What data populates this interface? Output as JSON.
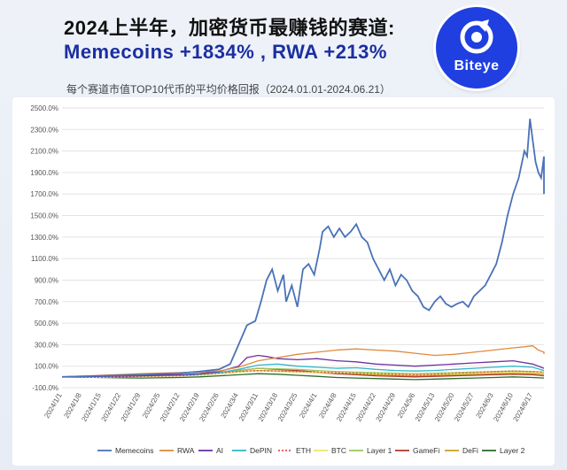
{
  "header": {
    "title_line1": "2024上半年，加密货币最赚钱的赛道:",
    "title_line2": "Memecoins  +1834%  , RWA  +213%",
    "subtitle": "每个赛道市值TOP10代币的平均价格回报（2024.01.01-2024.06.21）",
    "logo_text": "Biteye"
  },
  "colors": {
    "Memecoins": "#4a72b8",
    "RWA": "#e08a3c",
    "AI": "#7030a0",
    "DePIN": "#31b7c9",
    "ETH": "#d9534f",
    "BTC": "#f2e36b",
    "Layer 1": "#9bc85a",
    "GameFi": "#b03a2e",
    "DeFi": "#c9a227",
    "Layer 2": "#2e6b2e"
  },
  "chart_data": {
    "type": "line",
    "title": "每个赛道市值TOP10代币的平均价格回报（2024.01.01-2024.06.21）",
    "ylim": [
      -100,
      2500
    ],
    "yticks": [
      -100,
      100,
      300,
      500,
      700,
      900,
      1100,
      1300,
      1500,
      1700,
      1900,
      2100,
      2300,
      2500
    ],
    "ytick_labels": [
      "-100.0%",
      "100.0%",
      "300.0%",
      "500.0%",
      "700.0%",
      "900.0%",
      "1100.0%",
      "1300.0%",
      "1500.0%",
      "1700.0%",
      "1900.0%",
      "2100.0%",
      "2300.0%",
      "2500.0%"
    ],
    "xtick_labels": [
      "2024/1/1",
      "2024/1/8",
      "2024/1/15",
      "2024/1/22",
      "2024/1/29",
      "2024/2/5",
      "2024/2/12",
      "2024/2/19",
      "2024/2/26",
      "2024/3/4",
      "2024/3/11",
      "2024/3/18",
      "2024/3/25",
      "2024/4/1",
      "2024/4/8",
      "2024/4/15",
      "2024/4/22",
      "2024/4/29",
      "2024/5/6",
      "2024/5/13",
      "2024/5/20",
      "2024/5/27",
      "2024/6/3",
      "2024/6/10",
      "2024/6/17"
    ],
    "x_day_range": [
      0,
      172
    ],
    "legend": [
      "Memecoins",
      "RWA",
      "AI",
      "DePIN",
      "ETH",
      "BTC",
      "Layer 1",
      "GameFi",
      "DeFi",
      "Layer 2"
    ],
    "legend_position": "bottom",
    "grid": "horizontal",
    "series": [
      {
        "name": "Memecoins",
        "points": [
          [
            0,
            0
          ],
          [
            14,
            10
          ],
          [
            28,
            20
          ],
          [
            42,
            35
          ],
          [
            49,
            50
          ],
          [
            56,
            70
          ],
          [
            60,
            120
          ],
          [
            63,
            300
          ],
          [
            66,
            480
          ],
          [
            69,
            520
          ],
          [
            71,
            700
          ],
          [
            73,
            900
          ],
          [
            75,
            1000
          ],
          [
            77,
            800
          ],
          [
            79,
            950
          ],
          [
            80,
            700
          ],
          [
            82,
            850
          ],
          [
            84,
            650
          ],
          [
            86,
            1000
          ],
          [
            88,
            1050
          ],
          [
            90,
            950
          ],
          [
            92,
            1200
          ],
          [
            93,
            1350
          ],
          [
            95,
            1400
          ],
          [
            97,
            1300
          ],
          [
            99,
            1380
          ],
          [
            101,
            1300
          ],
          [
            103,
            1350
          ],
          [
            105,
            1420
          ],
          [
            107,
            1300
          ],
          [
            109,
            1250
          ],
          [
            111,
            1100
          ],
          [
            113,
            1000
          ],
          [
            115,
            900
          ],
          [
            117,
            1000
          ],
          [
            119,
            850
          ],
          [
            121,
            950
          ],
          [
            123,
            900
          ],
          [
            125,
            800
          ],
          [
            127,
            750
          ],
          [
            129,
            650
          ],
          [
            131,
            620
          ],
          [
            133,
            700
          ],
          [
            135,
            750
          ],
          [
            137,
            680
          ],
          [
            139,
            650
          ],
          [
            141,
            680
          ],
          [
            143,
            700
          ],
          [
            145,
            650
          ],
          [
            147,
            750
          ],
          [
            149,
            800
          ],
          [
            151,
            850
          ],
          [
            153,
            950
          ],
          [
            155,
            1050
          ],
          [
            157,
            1250
          ],
          [
            159,
            1500
          ],
          [
            161,
            1700
          ],
          [
            163,
            1850
          ],
          [
            165,
            2100
          ],
          [
            166,
            2050
          ],
          [
            167,
            2400
          ],
          [
            168,
            2200
          ],
          [
            169,
            2000
          ],
          [
            170,
            1900
          ],
          [
            171,
            1850
          ],
          [
            172,
            2050
          ],
          [
            173,
            1800
          ],
          [
            174,
            1700
          ],
          [
            175,
            1900
          ],
          [
            176,
            1834
          ]
        ]
      },
      {
        "name": "RWA",
        "points": [
          [
            0,
            0
          ],
          [
            14,
            15
          ],
          [
            28,
            30
          ],
          [
            42,
            40
          ],
          [
            49,
            45
          ],
          [
            56,
            55
          ],
          [
            63,
            90
          ],
          [
            70,
            150
          ],
          [
            77,
            180
          ],
          [
            84,
            210
          ],
          [
            91,
            230
          ],
          [
            98,
            250
          ],
          [
            105,
            260
          ],
          [
            112,
            250
          ],
          [
            119,
            240
          ],
          [
            126,
            220
          ],
          [
            133,
            200
          ],
          [
            140,
            210
          ],
          [
            147,
            230
          ],
          [
            154,
            250
          ],
          [
            161,
            270
          ],
          [
            165,
            280
          ],
          [
            168,
            290
          ],
          [
            170,
            250
          ],
          [
            172,
            230
          ],
          [
            176,
            213
          ]
        ]
      },
      {
        "name": "AI",
        "points": [
          [
            0,
            0
          ],
          [
            14,
            5
          ],
          [
            28,
            10
          ],
          [
            42,
            20
          ],
          [
            49,
            30
          ],
          [
            56,
            50
          ],
          [
            63,
            100
          ],
          [
            66,
            180
          ],
          [
            70,
            200
          ],
          [
            73,
            190
          ],
          [
            77,
            170
          ],
          [
            84,
            160
          ],
          [
            91,
            170
          ],
          [
            98,
            150
          ],
          [
            105,
            140
          ],
          [
            112,
            120
          ],
          [
            119,
            110
          ],
          [
            126,
            100
          ],
          [
            133,
            110
          ],
          [
            140,
            120
          ],
          [
            147,
            130
          ],
          [
            154,
            140
          ],
          [
            161,
            150
          ],
          [
            168,
            120
          ],
          [
            176,
            80
          ]
        ]
      },
      {
        "name": "DePIN",
        "points": [
          [
            0,
            0
          ],
          [
            14,
            5
          ],
          [
            28,
            10
          ],
          [
            42,
            15
          ],
          [
            49,
            25
          ],
          [
            56,
            40
          ],
          [
            63,
            70
          ],
          [
            70,
            110
          ],
          [
            77,
            120
          ],
          [
            84,
            100
          ],
          [
            91,
            90
          ],
          [
            98,
            80
          ],
          [
            105,
            85
          ],
          [
            112,
            70
          ],
          [
            119,
            60
          ],
          [
            126,
            55
          ],
          [
            133,
            60
          ],
          [
            140,
            70
          ],
          [
            147,
            80
          ],
          [
            154,
            90
          ],
          [
            161,
            100
          ],
          [
            168,
            90
          ],
          [
            176,
            60
          ]
        ]
      },
      {
        "name": "ETH",
        "points": [
          [
            0,
            0
          ],
          [
            14,
            -5
          ],
          [
            28,
            5
          ],
          [
            42,
            10
          ],
          [
            49,
            20
          ],
          [
            56,
            35
          ],
          [
            63,
            50
          ],
          [
            70,
            60
          ],
          [
            77,
            55
          ],
          [
            84,
            50
          ],
          [
            91,
            45
          ],
          [
            98,
            40
          ],
          [
            105,
            35
          ],
          [
            112,
            30
          ],
          [
            119,
            25
          ],
          [
            126,
            20
          ],
          [
            133,
            25
          ],
          [
            140,
            35
          ],
          [
            147,
            40
          ],
          [
            154,
            50
          ],
          [
            161,
            55
          ],
          [
            168,
            50
          ],
          [
            176,
            45
          ]
        ]
      },
      {
        "name": "BTC",
        "points": [
          [
            0,
            0
          ],
          [
            14,
            -3
          ],
          [
            28,
            3
          ],
          [
            42,
            8
          ],
          [
            49,
            15
          ],
          [
            56,
            30
          ],
          [
            63,
            45
          ],
          [
            70,
            55
          ],
          [
            77,
            50
          ],
          [
            84,
            45
          ],
          [
            91,
            42
          ],
          [
            98,
            38
          ],
          [
            105,
            34
          ],
          [
            112,
            28
          ],
          [
            119,
            24
          ],
          [
            126,
            20
          ],
          [
            133,
            26
          ],
          [
            140,
            30
          ],
          [
            147,
            34
          ],
          [
            154,
            40
          ],
          [
            161,
            44
          ],
          [
            168,
            40
          ],
          [
            176,
            38
          ]
        ]
      },
      {
        "name": "Layer 1",
        "points": [
          [
            0,
            0
          ],
          [
            14,
            5
          ],
          [
            28,
            10
          ],
          [
            42,
            15
          ],
          [
            49,
            20
          ],
          [
            56,
            35
          ],
          [
            63,
            60
          ],
          [
            70,
            80
          ],
          [
            77,
            75
          ],
          [
            84,
            70
          ],
          [
            91,
            60
          ],
          [
            98,
            50
          ],
          [
            105,
            45
          ],
          [
            112,
            40
          ],
          [
            119,
            35
          ],
          [
            126,
            30
          ],
          [
            133,
            35
          ],
          [
            140,
            40
          ],
          [
            147,
            45
          ],
          [
            154,
            50
          ],
          [
            161,
            55
          ],
          [
            168,
            50
          ],
          [
            176,
            45
          ]
        ]
      },
      {
        "name": "GameFi",
        "points": [
          [
            0,
            0
          ],
          [
            14,
            10
          ],
          [
            28,
            15
          ],
          [
            42,
            20
          ],
          [
            49,
            25
          ],
          [
            56,
            40
          ],
          [
            63,
            60
          ],
          [
            70,
            80
          ],
          [
            77,
            70
          ],
          [
            84,
            60
          ],
          [
            91,
            45
          ],
          [
            98,
            30
          ],
          [
            105,
            20
          ],
          [
            112,
            10
          ],
          [
            119,
            5
          ],
          [
            126,
            0
          ],
          [
            133,
            5
          ],
          [
            140,
            10
          ],
          [
            147,
            15
          ],
          [
            154,
            20
          ],
          [
            161,
            25
          ],
          [
            168,
            20
          ],
          [
            176,
            10
          ]
        ]
      },
      {
        "name": "DeFi",
        "points": [
          [
            0,
            0
          ],
          [
            14,
            5
          ],
          [
            28,
            10
          ],
          [
            42,
            12
          ],
          [
            49,
            18
          ],
          [
            56,
            30
          ],
          [
            63,
            50
          ],
          [
            70,
            60
          ],
          [
            77,
            55
          ],
          [
            84,
            50
          ],
          [
            91,
            40
          ],
          [
            98,
            30
          ],
          [
            105,
            25
          ],
          [
            112,
            20
          ],
          [
            119,
            15
          ],
          [
            126,
            10
          ],
          [
            133,
            15
          ],
          [
            140,
            20
          ],
          [
            147,
            25
          ],
          [
            154,
            30
          ],
          [
            161,
            35
          ],
          [
            168,
            30
          ],
          [
            176,
            25
          ]
        ]
      },
      {
        "name": "Layer 2",
        "points": [
          [
            0,
            0
          ],
          [
            14,
            -5
          ],
          [
            28,
            -10
          ],
          [
            42,
            -5
          ],
          [
            49,
            0
          ],
          [
            56,
            10
          ],
          [
            63,
            20
          ],
          [
            70,
            30
          ],
          [
            77,
            25
          ],
          [
            84,
            15
          ],
          [
            91,
            5
          ],
          [
            98,
            -5
          ],
          [
            105,
            -10
          ],
          [
            112,
            -15
          ],
          [
            119,
            -20
          ],
          [
            126,
            -25
          ],
          [
            133,
            -20
          ],
          [
            140,
            -15
          ],
          [
            147,
            -10
          ],
          [
            154,
            -5
          ],
          [
            161,
            0
          ],
          [
            168,
            -5
          ],
          [
            176,
            -10
          ]
        ]
      }
    ]
  }
}
